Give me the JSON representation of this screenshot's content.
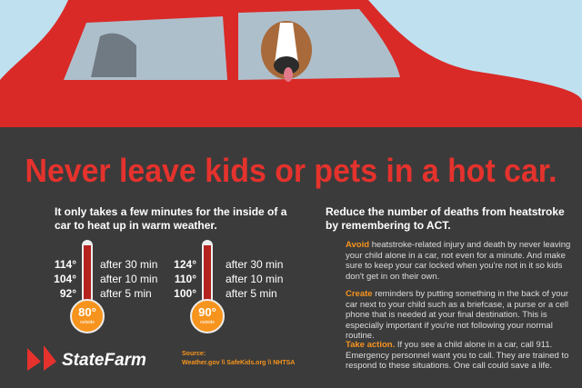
{
  "header": {
    "title": "Never leave kids or pets in a hot car."
  },
  "left": {
    "heading": "It only takes a few minutes for the inside of a car to heat up in warm weather.",
    "thermometers": [
      {
        "outside_temp": "80°",
        "outside_label": "outside",
        "readings": [
          {
            "temp": "114°",
            "time": "after 30 min"
          },
          {
            "temp": "104°",
            "time": "after 10 min"
          },
          {
            "temp": "92°",
            "time": "after 5 min"
          }
        ]
      },
      {
        "outside_temp": "90°",
        "outside_label": "outside",
        "readings": [
          {
            "temp": "124°",
            "time": "after 30 min"
          },
          {
            "temp": "110°",
            "time": "after 10 min"
          },
          {
            "temp": "100°",
            "time": "after 5 min"
          }
        ]
      }
    ]
  },
  "right": {
    "heading": "Reduce the number of deaths from heatstroke by remembering to ACT.",
    "tips": [
      {
        "lead": "Avoid",
        "text": "heatstroke-related injury and death by never leaving your child alone in a car, not even for a minute. And make sure to keep your car locked when you're not in it so kids don't get in on their own."
      },
      {
        "lead": "Create",
        "text": "reminders by putting something in the back of your car next to your child such as a briefcase, a purse or a cell phone that is needed at your final destination. This is especially important if you're not following your normal routine."
      },
      {
        "lead": "Take action.",
        "text": "If you see a child alone in a car, call 911. Emergency personnel want you to call. They are trained to respond to these situations. One call could save a life."
      }
    ]
  },
  "footer": {
    "source_label": "Source:",
    "sources": "Weather.gov \\\\ SafeKids.org \\\\ NHTSA",
    "brand": "StateFarm"
  }
}
